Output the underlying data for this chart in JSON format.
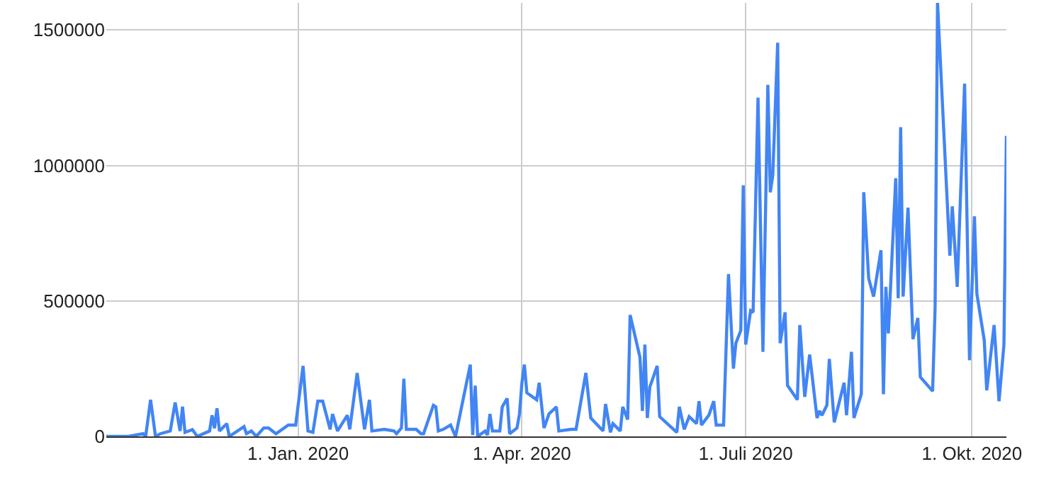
{
  "chart_data": {
    "type": "line",
    "color": "#4285f4",
    "marker": "none",
    "line_style": "solid",
    "grid": true,
    "x": [
      "2019-10-15",
      "2019-10-16",
      "2019-10-22",
      "2019-10-24",
      "2019-10-30",
      "2019-10-31",
      "2019-11-02",
      "2019-11-04",
      "2019-11-06",
      "2019-11-10",
      "2019-11-12",
      "2019-11-14",
      "2019-11-15",
      "2019-11-16",
      "2019-11-19",
      "2019-11-21",
      "2019-11-26",
      "2019-11-27",
      "2019-11-28",
      "2019-11-29",
      "2019-11-30",
      "2019-12-03",
      "2019-12-04",
      "2019-12-10",
      "2019-12-11",
      "2019-12-13",
      "2019-12-15",
      "2019-12-18",
      "2019-12-20",
      "2019-12-23",
      "2019-12-28",
      "2019-12-31",
      "2020-01-03",
      "2020-01-05",
      "2020-01-07",
      "2020-01-09",
      "2020-01-11",
      "2020-01-14",
      "2020-01-15",
      "2020-01-17",
      "2020-01-21",
      "2020-01-22",
      "2020-01-25",
      "2020-01-28",
      "2020-01-30",
      "2020-01-31",
      "2020-02-05",
      "2020-02-09",
      "2020-02-10",
      "2020-02-12",
      "2020-02-13",
      "2020-02-14",
      "2020-02-18",
      "2020-02-20",
      "2020-02-21",
      "2020-02-25",
      "2020-02-26",
      "2020-02-27",
      "2020-02-29",
      "2020-03-03",
      "2020-03-05",
      "2020-03-11",
      "2020-03-12",
      "2020-03-13",
      "2020-03-14",
      "2020-03-17",
      "2020-03-18",
      "2020-03-19",
      "2020-03-20",
      "2020-03-23",
      "2020-03-24",
      "2020-03-26",
      "2020-03-27",
      "2020-03-30",
      "2020-03-31",
      "2020-04-01",
      "2020-04-02",
      "2020-04-03",
      "2020-04-07",
      "2020-04-08",
      "2020-04-10",
      "2020-04-12",
      "2020-04-15",
      "2020-04-16",
      "2020-04-21",
      "2020-04-23",
      "2020-04-27",
      "2020-04-29",
      "2020-05-04",
      "2020-05-05",
      "2020-05-07",
      "2020-05-08",
      "2020-05-11",
      "2020-05-12",
      "2020-05-14",
      "2020-05-15",
      "2020-05-19",
      "2020-05-20",
      "2020-05-21",
      "2020-05-22",
      "2020-05-23",
      "2020-05-26",
      "2020-05-27",
      "2020-06-03",
      "2020-06-04",
      "2020-06-06",
      "2020-06-08",
      "2020-06-11",
      "2020-06-12",
      "2020-06-13",
      "2020-06-16",
      "2020-06-18",
      "2020-06-19",
      "2020-06-22",
      "2020-06-24",
      "2020-06-26",
      "2020-06-27",
      "2020-06-29",
      "2020-06-30",
      "2020-07-01",
      "2020-07-03",
      "2020-07-04",
      "2020-07-06",
      "2020-07-08",
      "2020-07-10",
      "2020-07-11",
      "2020-07-12",
      "2020-07-14",
      "2020-07-15",
      "2020-07-17",
      "2020-07-18",
      "2020-07-22",
      "2020-07-23",
      "2020-07-25",
      "2020-07-27",
      "2020-07-30",
      "2020-07-31",
      "2020-08-01",
      "2020-08-03",
      "2020-08-04",
      "2020-08-06",
      "2020-08-10",
      "2020-08-11",
      "2020-08-13",
      "2020-08-14",
      "2020-08-17",
      "2020-08-18",
      "2020-08-20",
      "2020-08-22",
      "2020-08-25",
      "2020-08-26",
      "2020-08-27",
      "2020-08-28",
      "2020-08-31",
      "2020-09-01",
      "2020-09-02",
      "2020-09-03",
      "2020-09-05",
      "2020-09-07",
      "2020-09-09",
      "2020-09-10",
      "2020-09-15",
      "2020-09-16",
      "2020-09-17",
      "2020-09-22",
      "2020-09-23",
      "2020-09-24",
      "2020-09-25",
      "2020-09-28",
      "2020-09-30",
      "2020-10-02",
      "2020-10-03",
      "2020-10-06",
      "2020-10-07",
      "2020-10-10",
      "2020-10-12",
      "2020-10-14",
      "2020-10-15"
    ],
    "values": [
      0,
      0,
      0,
      0,
      10000,
      0,
      135000,
      0,
      10000,
      20000,
      125000,
      20000,
      110000,
      15000,
      25000,
      0,
      20000,
      78000,
      30000,
      104000,
      20000,
      47000,
      0,
      36000,
      10000,
      20000,
      0,
      31000,
      31000,
      10000,
      42000,
      42000,
      260000,
      20000,
      15000,
      130000,
      130000,
      26000,
      83000,
      20000,
      78000,
      26000,
      234000,
      26000,
      135000,
      20000,
      26000,
      20000,
      10000,
      31000,
      213000,
      26000,
      26000,
      10000,
      10000,
      115000,
      109000,
      20000,
      26000,
      42000,
      0,
      265000,
      5000,
      187000,
      0,
      20000,
      5000,
      83000,
      20000,
      20000,
      109000,
      140000,
      10000,
      31000,
      83000,
      198000,
      265000,
      161000,
      135000,
      198000,
      31000,
      83000,
      109000,
      20000,
      26000,
      26000,
      234000,
      68000,
      20000,
      120000,
      15000,
      47000,
      20000,
      109000,
      62000,
      448000,
      292000,
      94000,
      339000,
      68000,
      182000,
      260000,
      73000,
      15000,
      109000,
      26000,
      73000,
      47000,
      130000,
      42000,
      78000,
      130000,
      42000,
      42000,
      599000,
      250000,
      344000,
      391000,
      927000,
      339000,
      464000,
      458000,
      1250000,
      312000,
      1297000,
      901000,
      963000,
      1453000,
      344000,
      458000,
      188000,
      135000,
      411000,
      146000,
      302000,
      68000,
      94000,
      78000,
      115000,
      286000,
      52000,
      198000,
      78000,
      312000,
      68000,
      156000,
      901000,
      583000,
      516000,
      687000,
      156000,
      552000,
      380000,
      953000,
      510000,
      1141000,
      516000,
      844000,
      359000,
      437000,
      219000,
      167000,
      474000,
      1600000,
      667000,
      849000,
      703000,
      552000,
      1302000,
      281000,
      812000,
      526000,
      354000,
      170000,
      411000,
      130000,
      339000,
      1109000
    ],
    "xlim": [
      "2019-10-15",
      "2020-10-15"
    ],
    "xticks": [
      {
        "value": "2020-01-01",
        "label": "1. Jan. 2020"
      },
      {
        "value": "2020-04-01",
        "label": "1. Apr. 2020"
      },
      {
        "value": "2020-07-01",
        "label": "1. Juli 2020"
      },
      {
        "value": "2020-10-01",
        "label": "1. Okt. 2020"
      }
    ],
    "ylim": [
      0,
      1600000
    ],
    "yticks": [
      0,
      500000,
      1000000,
      1500000
    ]
  }
}
